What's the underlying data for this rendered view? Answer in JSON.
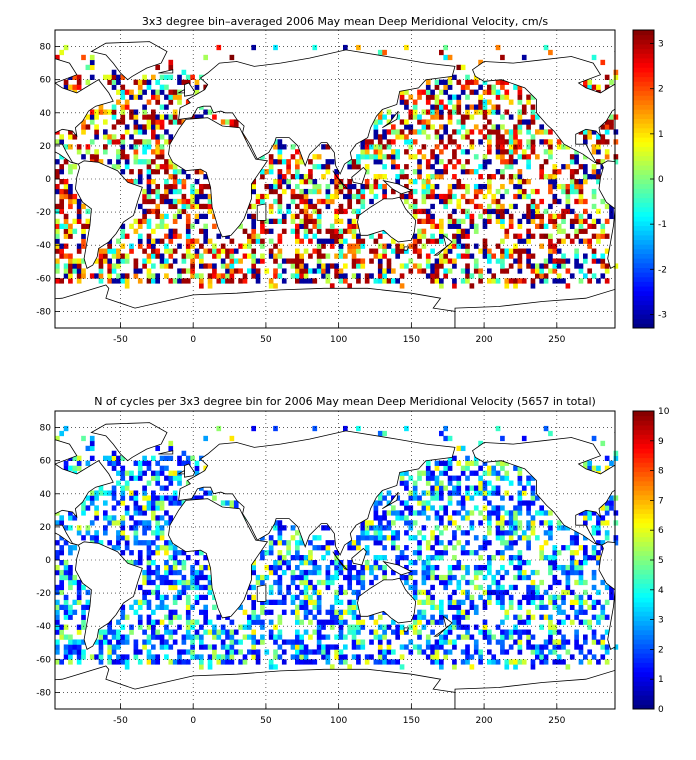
{
  "chart_data": [
    {
      "type": "heatmap",
      "title": "3x3 degree bin–averaged 2006 May mean Deep Meridional Velocity, cm/s",
      "xlabel": "",
      "ylabel": "",
      "xlim": [
        -95,
        290
      ],
      "ylim": [
        -90,
        90
      ],
      "xticks": [
        "-50",
        "0",
        "50",
        "100",
        "150",
        "200",
        "250"
      ],
      "yticks": [
        "80",
        "60",
        "40",
        "20",
        "0",
        "-20",
        "-40",
        "-60",
        "-80"
      ],
      "grid": true,
      "colorbar": {
        "min": -3.3,
        "max": 3.3,
        "ticks": [
          "3",
          "2",
          "1",
          "0",
          "-1",
          "-2",
          "-3"
        ],
        "colormap": "jet"
      },
      "bin_size_degrees": 3
    },
    {
      "type": "heatmap",
      "title": "N of cycles per 3x3 degree bin for 2006 May mean Deep Meridional Velocity (5657 in total)",
      "xlabel": "",
      "ylabel": "",
      "xlim": [
        -95,
        290
      ],
      "ylim": [
        -90,
        90
      ],
      "xticks": [
        "-50",
        "0",
        "50",
        "100",
        "150",
        "200",
        "250"
      ],
      "yticks": [
        "80",
        "60",
        "40",
        "20",
        "0",
        "-20",
        "-40",
        "-60",
        "-80"
      ],
      "grid": true,
      "colorbar": {
        "min": 0,
        "max": 10,
        "ticks": [
          "10",
          "9",
          "8",
          "7",
          "6",
          "5",
          "4",
          "3",
          "2",
          "1",
          "0"
        ],
        "colormap": "jet"
      },
      "bin_size_degrees": 3,
      "total_cycles": 5657
    }
  ]
}
